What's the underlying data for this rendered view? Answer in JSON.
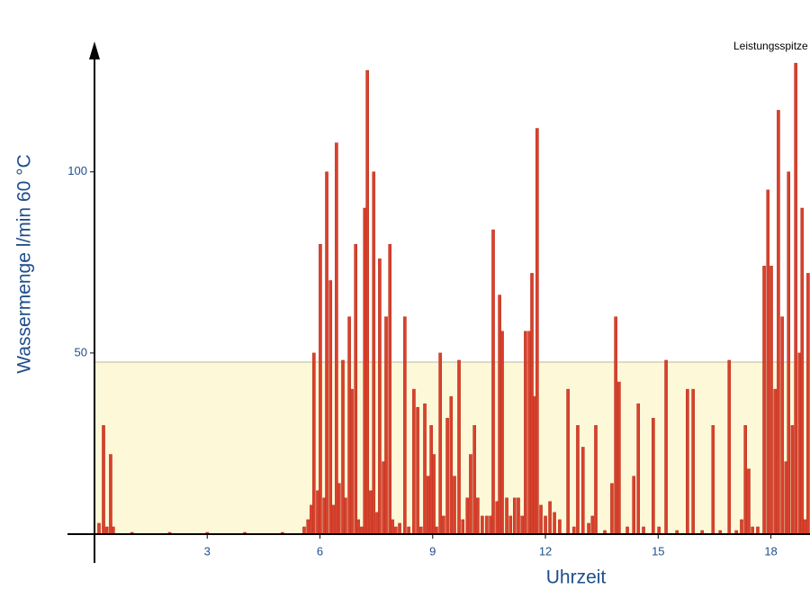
{
  "chart_data": {
    "type": "bar",
    "xlabel": "Uhrzeit",
    "ylabel": "Wassermenge l/min 60 °C",
    "annotation": "Leistungsspitze",
    "x": [
      0.12,
      0.24,
      0.33,
      0.43,
      0.5,
      1,
      2,
      3,
      4,
      5,
      5.58,
      5.68,
      5.77,
      5.84,
      5.94,
      6.01,
      6.11,
      6.18,
      6.28,
      6.35,
      6.44,
      6.51,
      6.61,
      6.68,
      6.78,
      6.85,
      6.95,
      7.02,
      7.11,
      7.19,
      7.26,
      7.35,
      7.43,
      7.52,
      7.59,
      7.69,
      7.76,
      7.86,
      7.93,
      8.02,
      8.12,
      8.26,
      8.36,
      8.5,
      8.6,
      8.69,
      8.79,
      8.88,
      8.96,
      9.03,
      9.1,
      9.2,
      9.29,
      9.39,
      9.49,
      9.58,
      9.7,
      9.8,
      9.92,
      10.01,
      10.11,
      10.2,
      10.32,
      10.44,
      10.54,
      10.61,
      10.71,
      10.78,
      10.85,
      10.97,
      11.07,
      11.18,
      11.28,
      11.38,
      11.47,
      11.57,
      11.64,
      11.71,
      11.78,
      11.88,
      12.0,
      12.12,
      12.24,
      12.38,
      12.6,
      12.76,
      12.86,
      13.0,
      13.15,
      13.25,
      13.34,
      13.58,
      13.77,
      13.87,
      13.96,
      14.18,
      14.35,
      14.47,
      14.61,
      14.87,
      15.02,
      15.21,
      15.5,
      15.78,
      15.93,
      16.17,
      16.46,
      16.65,
      16.89,
      17.08,
      17.22,
      17.32,
      17.41,
      17.51,
      17.65,
      17.82,
      17.92,
      18.01,
      18.11,
      18.2,
      18.3,
      18.4,
      18.47,
      18.57,
      18.66,
      18.76,
      18.83,
      18.9,
      18.99
    ],
    "values": [
      3,
      30,
      2,
      22,
      2,
      0.5,
      0.5,
      0.5,
      0.5,
      0.5,
      2,
      4,
      8,
      50,
      12,
      80,
      10,
      100,
      70,
      8,
      108,
      14,
      48,
      10,
      60,
      40,
      80,
      4,
      2,
      90,
      128,
      12,
      100,
      6,
      76,
      20,
      60,
      80,
      4,
      2,
      3,
      60,
      2,
      40,
      35,
      2,
      36,
      16,
      30,
      22,
      2,
      50,
      5,
      32,
      38,
      16,
      48,
      4,
      10,
      22,
      30,
      10,
      5,
      5,
      5,
      84,
      9,
      66,
      56,
      10,
      5,
      10,
      10,
      5,
      56,
      56,
      72,
      38,
      112,
      8,
      5,
      9,
      6,
      4,
      40,
      2,
      30,
      24,
      3,
      5,
      30,
      1,
      14,
      60,
      42,
      2,
      16,
      36,
      2,
      32,
      2,
      48,
      1,
      40,
      40,
      1,
      30,
      1,
      48,
      1,
      4,
      30,
      18,
      2,
      2,
      74,
      95,
      74,
      40,
      117,
      60,
      20,
      100,
      30,
      130,
      50,
      90,
      4,
      72
    ],
    "color": "#d9412c",
    "band_upper": 47.5,
    "band_color": "#fdf8d8",
    "xlim": [
      0,
      19.04
    ],
    "ylim": [
      0,
      135
    ],
    "xticks": [
      3,
      6,
      9,
      12,
      15,
      18
    ],
    "yticks": [
      50,
      100
    ]
  }
}
